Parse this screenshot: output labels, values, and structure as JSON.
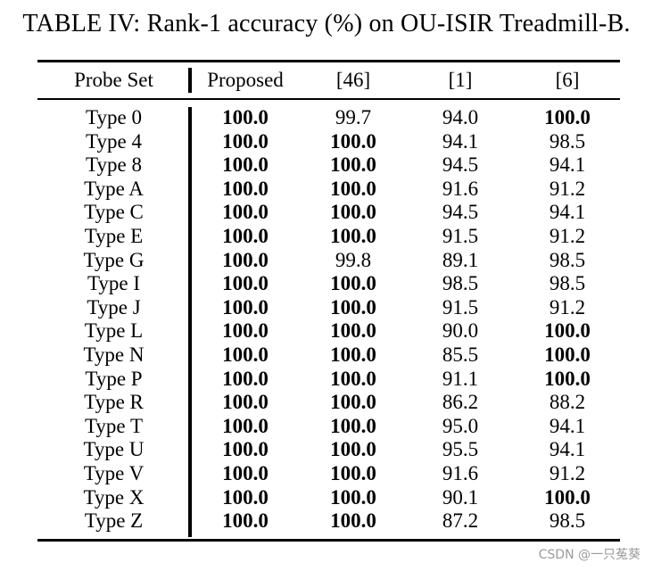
{
  "caption": "TABLE IV: Rank-1 accuracy (%) on OU-ISIR Treadmill-B.",
  "columns": [
    "Probe Set",
    "Proposed",
    "[46]",
    "[1]",
    "[6]"
  ],
  "rows": [
    {
      "probe": "Type 0",
      "values": [
        "100.0",
        "99.7",
        "94.0",
        "100.0"
      ],
      "bold": [
        true,
        false,
        false,
        true
      ]
    },
    {
      "probe": "Type 4",
      "values": [
        "100.0",
        "100.0",
        "94.1",
        "98.5"
      ],
      "bold": [
        true,
        true,
        false,
        false
      ]
    },
    {
      "probe": "Type 8",
      "values": [
        "100.0",
        "100.0",
        "94.5",
        "94.1"
      ],
      "bold": [
        true,
        true,
        false,
        false
      ]
    },
    {
      "probe": "Type A",
      "values": [
        "100.0",
        "100.0",
        "91.6",
        "91.2"
      ],
      "bold": [
        true,
        true,
        false,
        false
      ]
    },
    {
      "probe": "Type C",
      "values": [
        "100.0",
        "100.0",
        "94.5",
        "94.1"
      ],
      "bold": [
        true,
        true,
        false,
        false
      ]
    },
    {
      "probe": "Type E",
      "values": [
        "100.0",
        "100.0",
        "91.5",
        "91.2"
      ],
      "bold": [
        true,
        true,
        false,
        false
      ]
    },
    {
      "probe": "Type G",
      "values": [
        "100.0",
        "99.8",
        "89.1",
        "98.5"
      ],
      "bold": [
        true,
        false,
        false,
        false
      ]
    },
    {
      "probe": "Type I",
      "values": [
        "100.0",
        "100.0",
        "98.5",
        "98.5"
      ],
      "bold": [
        true,
        true,
        false,
        false
      ]
    },
    {
      "probe": "Type J",
      "values": [
        "100.0",
        "100.0",
        "91.5",
        "91.2"
      ],
      "bold": [
        true,
        true,
        false,
        false
      ]
    },
    {
      "probe": "Type L",
      "values": [
        "100.0",
        "100.0",
        "90.0",
        "100.0"
      ],
      "bold": [
        true,
        true,
        false,
        true
      ]
    },
    {
      "probe": "Type N",
      "values": [
        "100.0",
        "100.0",
        "85.5",
        "100.0"
      ],
      "bold": [
        true,
        true,
        false,
        true
      ]
    },
    {
      "probe": "Type P",
      "values": [
        "100.0",
        "100.0",
        "91.1",
        "100.0"
      ],
      "bold": [
        true,
        true,
        false,
        true
      ]
    },
    {
      "probe": "Type R",
      "values": [
        "100.0",
        "100.0",
        "86.2",
        "88.2"
      ],
      "bold": [
        true,
        true,
        false,
        false
      ]
    },
    {
      "probe": "Type T",
      "values": [
        "100.0",
        "100.0",
        "95.0",
        "94.1"
      ],
      "bold": [
        true,
        true,
        false,
        false
      ]
    },
    {
      "probe": "Type U",
      "values": [
        "100.0",
        "100.0",
        "95.5",
        "94.1"
      ],
      "bold": [
        true,
        true,
        false,
        false
      ]
    },
    {
      "probe": "Type V",
      "values": [
        "100.0",
        "100.0",
        "91.6",
        "91.2"
      ],
      "bold": [
        true,
        true,
        false,
        false
      ]
    },
    {
      "probe": "Type X",
      "values": [
        "100.0",
        "100.0",
        "90.1",
        "100.0"
      ],
      "bold": [
        true,
        true,
        false,
        true
      ]
    },
    {
      "probe": "Type Z",
      "values": [
        "100.0",
        "100.0",
        "87.2",
        "98.5"
      ],
      "bold": [
        true,
        true,
        false,
        false
      ]
    }
  ],
  "watermark": "CSDN @一只菟葵"
}
